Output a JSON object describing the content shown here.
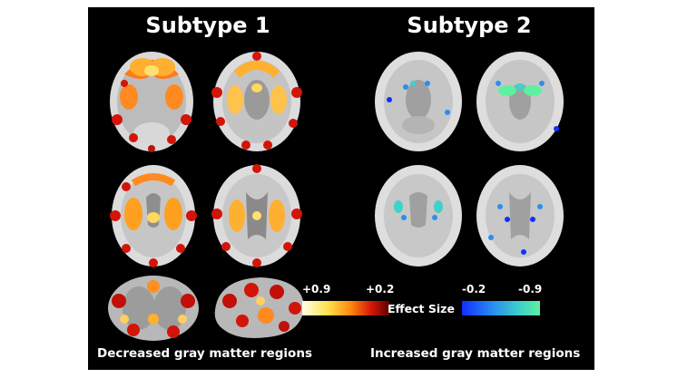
{
  "titles": {
    "subtype1": "Subtype 1",
    "subtype2": "Subtype 2"
  },
  "captions": {
    "left": "Decreased gray matter regions",
    "right": "Increased gray matter regions"
  },
  "colorbar": {
    "warm_min_label": "+0.9",
    "warm_max_label": "+0.2",
    "cool_min_label": "-0.2",
    "cool_max_label": "-0.9",
    "title": "Effect Size"
  },
  "colors": {
    "background": "#000000",
    "warm_accent": "#e0301a",
    "cool_accent": "#35c8c0"
  }
}
